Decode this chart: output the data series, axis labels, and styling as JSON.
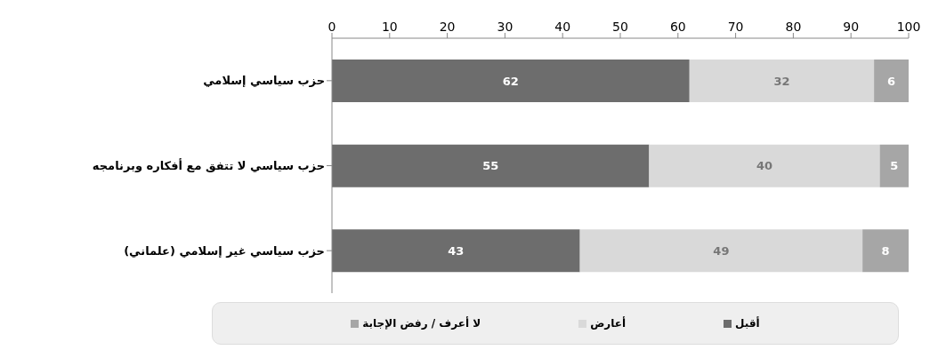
{
  "chart_data": {
    "type": "bar",
    "orientation": "horizontal",
    "stacked": true,
    "categories": [
      "حزب سياسي إسلامي",
      "حزب سياسي لا تتفق مع أفكاره وبرنامجه",
      "حزب سياسي غير إسلامي (علماني)"
    ],
    "series": [
      {
        "name": "أقبل",
        "color": "#6d6d6d",
        "values": [
          62,
          55,
          43
        ]
      },
      {
        "name": "أعارض",
        "color": "#d9d9d9",
        "values": [
          32,
          40,
          49
        ]
      },
      {
        "name": "لا أعرف /  رفض الإجابة",
        "color": "#a6a6a6",
        "values": [
          6,
          5,
          8
        ]
      }
    ],
    "xlim": [
      0,
      100
    ],
    "xticks": [
      0,
      10,
      20,
      30,
      40,
      50,
      60,
      70,
      80,
      90,
      100
    ],
    "legend": "bottom",
    "data_labels": true
  }
}
